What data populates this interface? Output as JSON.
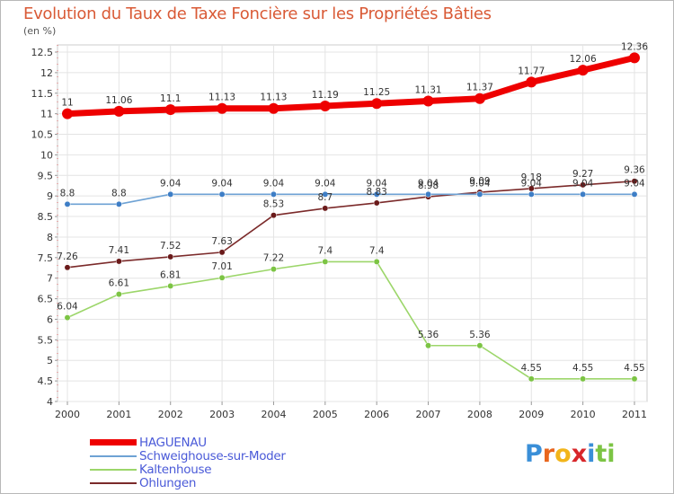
{
  "chart_data": {
    "type": "line",
    "title": "Evolution du Taux de Taxe Foncière sur les Propriétés Bâties",
    "ylabel": "(en %)",
    "xlabel": "",
    "ylim": [
      4,
      12.5
    ],
    "ytick_step": 0.5,
    "categories": [
      "2000",
      "2001",
      "2002",
      "2003",
      "2004",
      "2005",
      "2006",
      "2007",
      "2008",
      "2009",
      "2010",
      "2011"
    ],
    "series": [
      {
        "name": "HAGUENAU",
        "color": "#ee0000",
        "values": [
          11,
          11.06,
          11.1,
          11.13,
          11.13,
          11.19,
          11.25,
          11.31,
          11.37,
          11.77,
          12.06,
          12.36
        ]
      },
      {
        "name": "Schweighouse-sur-Moder",
        "color": "#6ea2d4",
        "marker": "#3e7ec6",
        "values": [
          8.8,
          8.8,
          9.04,
          9.04,
          9.04,
          9.04,
          9.04,
          9.04,
          9.04,
          9.04,
          9.04,
          9.04
        ]
      },
      {
        "name": "Kaltenhouse",
        "color": "#9cd66a",
        "marker": "#7cc444",
        "values": [
          6.04,
          6.61,
          6.81,
          7.01,
          7.22,
          7.4,
          7.4,
          5.36,
          5.36,
          4.55,
          4.55,
          4.55
        ]
      },
      {
        "name": "Ohlungen",
        "color": "#7b2a2a",
        "marker": "#6a1a1a",
        "values": [
          7.26,
          7.41,
          7.52,
          7.63,
          8.53,
          8.7,
          8.83,
          8.98,
          9.09,
          9.18,
          9.27,
          9.36
        ]
      }
    ],
    "grid": true,
    "legend": "bottom-left"
  },
  "logo": {
    "text": "Proxiti"
  }
}
